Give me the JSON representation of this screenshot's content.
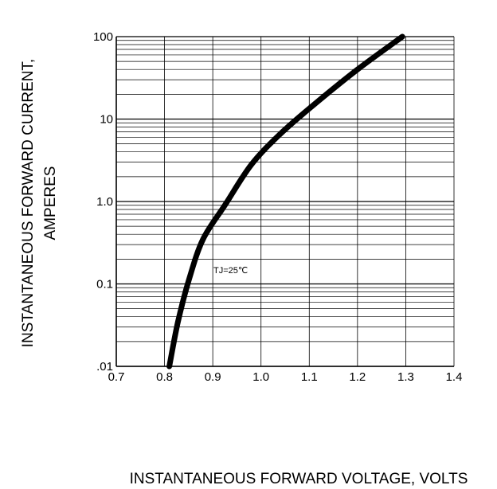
{
  "chart_data": {
    "type": "line",
    "xlabel": "INSTANTANEOUS FORWARD VOLTAGE,  VOLTS",
    "ylabel_line1": "INSTANTANEOUS FORWARD CURRENT,",
    "ylabel_line2": "AMPERES",
    "xlim": [
      0.7,
      1.4
    ],
    "ylim": [
      0.01,
      100
    ],
    "yscale": "log",
    "xticks": [
      0.7,
      0.8,
      0.9,
      1.0,
      1.1,
      1.2,
      1.3,
      1.4
    ],
    "xtick_labels": [
      "0.7",
      "0.8",
      "0.9",
      "1.0",
      "1.1",
      "1.2",
      "1.3",
      "1.4"
    ],
    "yticks": [
      0.01,
      0.1,
      1,
      10,
      100
    ],
    "ytick_labels": [
      ".01",
      "0.1",
      "1.0",
      "10",
      "100"
    ],
    "grid": true,
    "annotation": "TJ=25℃",
    "series": [
      {
        "x": [
          0.81,
          0.828,
          0.852,
          0.88,
          0.925,
          0.98,
          1.04,
          1.11,
          1.2,
          1.293
        ],
        "y": [
          0.01,
          0.035,
          0.12,
          0.35,
          0.9,
          2.8,
          6.6,
          15,
          40,
          100
        ]
      }
    ]
  }
}
